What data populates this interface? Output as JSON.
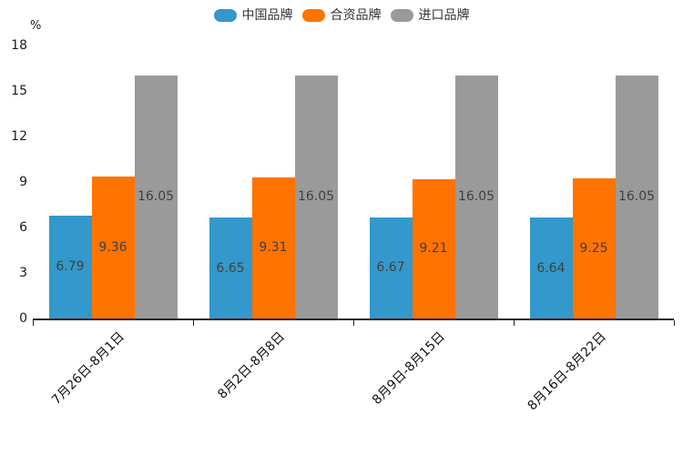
{
  "chart_data": {
    "type": "bar",
    "title": "",
    "categories": [
      "7月26日-8月1日",
      "8月2日-8月8日",
      "8月9日-8月15日",
      "8月16日-8月22日"
    ],
    "series": [
      {
        "name": "中国品牌",
        "color": "#3398CB",
        "values": [
          6.79,
          6.65,
          6.67,
          6.64
        ]
      },
      {
        "name": "合资品牌",
        "color": "#FF7300",
        "values": [
          9.36,
          9.31,
          9.21,
          9.25
        ]
      },
      {
        "name": "进口品牌",
        "color": "#9A9A9A",
        "values": [
          16.05,
          16.05,
          16.05,
          16.05
        ]
      }
    ],
    "xlabel": "",
    "ylabel": "%",
    "ylim": [
      0,
      18
    ],
    "y_ticks": [
      0,
      3,
      6,
      9,
      12,
      15,
      18
    ],
    "grid": false,
    "legend_position": "top-center",
    "value_labels": "inside-center",
    "x_label_rotation_deg": 45
  },
  "colors": {
    "axis": "#222222",
    "value_label": "#404040",
    "tick_label": "#1a1a1a",
    "background": "#ffffff"
  }
}
